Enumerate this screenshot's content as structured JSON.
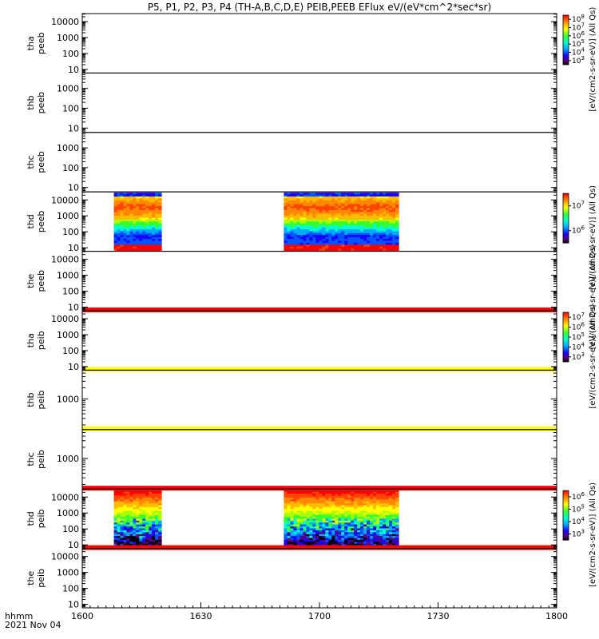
{
  "title": "P5, P1, P2, P3, P4 (TH-A,B,C,D,E) PEIB,PEEB EFlux eV/(eV*cm^2*sec*sr)",
  "chart_data": {
    "type": "heatmap",
    "title": "P5, P1, P2, P3, P4 (TH-A,B,C,D,E) PEIB,PEEB EFlux eV/(eV*cm^2*sec*sr)",
    "x_axis": {
      "unit_label": "hhmm",
      "date_label": "2021 Nov 04",
      "ticks": [
        "1600",
        "1630",
        "1700",
        "1730",
        "1800"
      ],
      "range": [
        "16:00",
        "18:00"
      ]
    },
    "y_scale": "log",
    "panels": [
      {
        "name": "tha-peeb",
        "label": [
          "tha",
          "peeb"
        ],
        "y_ticks": [
          "10000",
          "1000",
          "100",
          "10"
        ],
        "ylim": [
          6,
          32000
        ],
        "colorbar": {
          "label": "[eV/(cm2-s-sr-eV)] (All Qs)",
          "ticks": [
            "10^3",
            "10^4",
            "10^5",
            "10^6",
            "10^7",
            "10^8"
          ]
        },
        "data_intervals": [],
        "line_color": ""
      },
      {
        "name": "thb-peeb",
        "label": [
          "thb",
          "peeb"
        ],
        "y_ticks": [
          "1000",
          "100",
          "10"
        ],
        "ylim": [
          6,
          6000
        ],
        "colorbar": null,
        "data_intervals": [],
        "line_color": ""
      },
      {
        "name": "thc-peeb",
        "label": [
          "thc",
          "peeb"
        ],
        "y_ticks": [
          "1000",
          "100",
          "10"
        ],
        "ylim": [
          6,
          6000
        ],
        "colorbar": null,
        "data_intervals": [],
        "line_color": ""
      },
      {
        "name": "thd-peeb",
        "label": [
          "thd",
          "peeb"
        ],
        "y_ticks": [
          "10000",
          "1000",
          "100",
          "10"
        ],
        "ylim": [
          6,
          32000
        ],
        "colorbar": {
          "label": "[eV/(cm2-s-sr-eV)] (All Qs)",
          "ticks": [
            "10^6",
            "10^7"
          ]
        },
        "data_intervals": [
          [
            "16:08",
            "16:20"
          ],
          [
            "16:51",
            "17:20"
          ]
        ],
        "spectrum": "electron",
        "line_color": ""
      },
      {
        "name": "the-peeb",
        "label": [
          "the",
          "peeb"
        ],
        "y_ticks": [
          "10000",
          "1000",
          "100",
          "10"
        ],
        "ylim": [
          6,
          32000
        ],
        "colorbar": {
          "label": "[eV/(cm2-s-sr-eV)] (All Qs)",
          "ticks": []
        },
        "data_intervals": [],
        "line_color": "#ff0000"
      },
      {
        "name": "tha-peib",
        "label": [
          "tha",
          "peib"
        ],
        "y_ticks": [
          "10000",
          "1000",
          "100",
          "10"
        ],
        "ylim": [
          6,
          32000
        ],
        "colorbar": {
          "label": "[eV/(cm2-s-sr-eV)] (All Qs)",
          "ticks": [
            "10^3",
            "10^4",
            "10^5",
            "10^6",
            "10^7"
          ]
        },
        "data_intervals": [],
        "line_color": "#ffff00"
      },
      {
        "name": "thb-peib",
        "label": [
          "thb",
          "peib"
        ],
        "y_ticks": [
          "1000"
        ],
        "ylim": [
          150,
          6000
        ],
        "colorbar": null,
        "data_intervals": [],
        "line_color": "#ffff00"
      },
      {
        "name": "thc-peib",
        "label": [
          "thc",
          "peib"
        ],
        "y_ticks": [
          "1000"
        ],
        "ylim": [
          150,
          6000
        ],
        "colorbar": null,
        "data_intervals": [],
        "line_color": "#ff0000"
      },
      {
        "name": "thd-peib",
        "label": [
          "thd",
          "peib"
        ],
        "y_ticks": [
          "10000",
          "1000",
          "100",
          "10"
        ],
        "ylim": [
          6,
          32000
        ],
        "colorbar": {
          "label": "[eV/(cm2-s-sr-eV)] (All Qs)",
          "ticks": [
            "10^3",
            "10^4",
            "10^5",
            "10^6"
          ]
        },
        "data_intervals": [
          [
            "16:08",
            "16:20"
          ],
          [
            "16:51",
            "17:20"
          ]
        ],
        "spectrum": "ion",
        "line_color": "#ff0000"
      },
      {
        "name": "the-peib",
        "label": [
          "the",
          "peib"
        ],
        "y_ticks": [
          "10000",
          "1000",
          "100",
          "10"
        ],
        "ylim": [
          6,
          32000
        ],
        "colorbar": null,
        "data_intervals": [],
        "line_color": ""
      }
    ]
  }
}
